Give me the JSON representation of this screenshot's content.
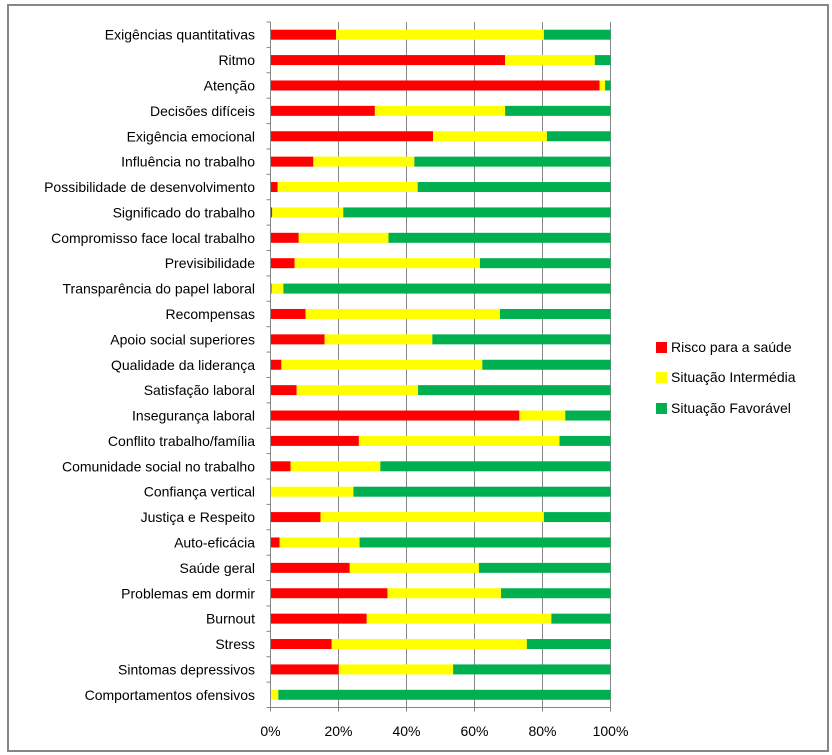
{
  "chart_data": {
    "type": "bar",
    "orientation": "horizontal",
    "stacked": "percent",
    "title": "",
    "xlabel": "",
    "ylabel": "",
    "xlim": [
      0,
      100
    ],
    "x_ticks": [
      "0%",
      "20%",
      "40%",
      "60%",
      "80%",
      "100%"
    ],
    "grid": "vertical",
    "legend_position": "right",
    "categories": [
      "Exigências quantitativas",
      "Ritmo",
      "Atenção",
      "Decisões difíceis",
      "Exigência emocional",
      "Influência no trabalho",
      "Possibilidade de desenvolvimento",
      "Significado do trabalho",
      "Compromisso face local trabalho",
      "Previsibilidade",
      "Transparência do papel laboral",
      "Recompensas",
      "Apoio social superiores",
      "Qualidade da liderança",
      "Satisfação laboral",
      "Insegurança laboral",
      "Conflito trabalho/família",
      "Comunidade social no trabalho",
      "Confiança vertical",
      "Justiça e Respeito",
      "Auto-eficácia",
      "Saúde geral",
      "Problemas em dormir",
      "Burnout",
      "Stress",
      "Sintomas depressivos",
      "Comportamentos ofensivos"
    ],
    "series": [
      {
        "name": "Risco para a saúde",
        "color": "#ff0000",
        "values": [
          19.3,
          69.0,
          96.8,
          30.7,
          47.8,
          12.6,
          2.1,
          0.5,
          8.3,
          7.1,
          0.3,
          10.3,
          15.9,
          3.2,
          7.7,
          73.2,
          26.0,
          5.9,
          0.0,
          14.7,
          2.7,
          23.3,
          34.4,
          28.3,
          18.0,
          20.1,
          0.0
        ]
      },
      {
        "name": "Situação Intermédia",
        "color": "#ffff00",
        "values": [
          61.1,
          26.4,
          1.6,
          38.3,
          33.5,
          29.7,
          41.2,
          20.9,
          26.4,
          54.5,
          3.5,
          57.2,
          31.7,
          59.1,
          35.7,
          13.5,
          59.0,
          26.4,
          24.4,
          65.7,
          23.5,
          38.0,
          33.4,
          54.3,
          57.4,
          33.6,
          2.3
        ]
      },
      {
        "name": "Situação Favorável",
        "color": "#00b050",
        "values": [
          19.6,
          4.6,
          1.6,
          31.0,
          18.7,
          57.7,
          56.7,
          78.6,
          65.3,
          38.4,
          96.2,
          32.5,
          52.4,
          37.7,
          56.6,
          13.3,
          15.0,
          67.7,
          75.6,
          19.6,
          73.8,
          38.7,
          32.2,
          17.4,
          24.6,
          46.3,
          97.7
        ]
      }
    ]
  }
}
